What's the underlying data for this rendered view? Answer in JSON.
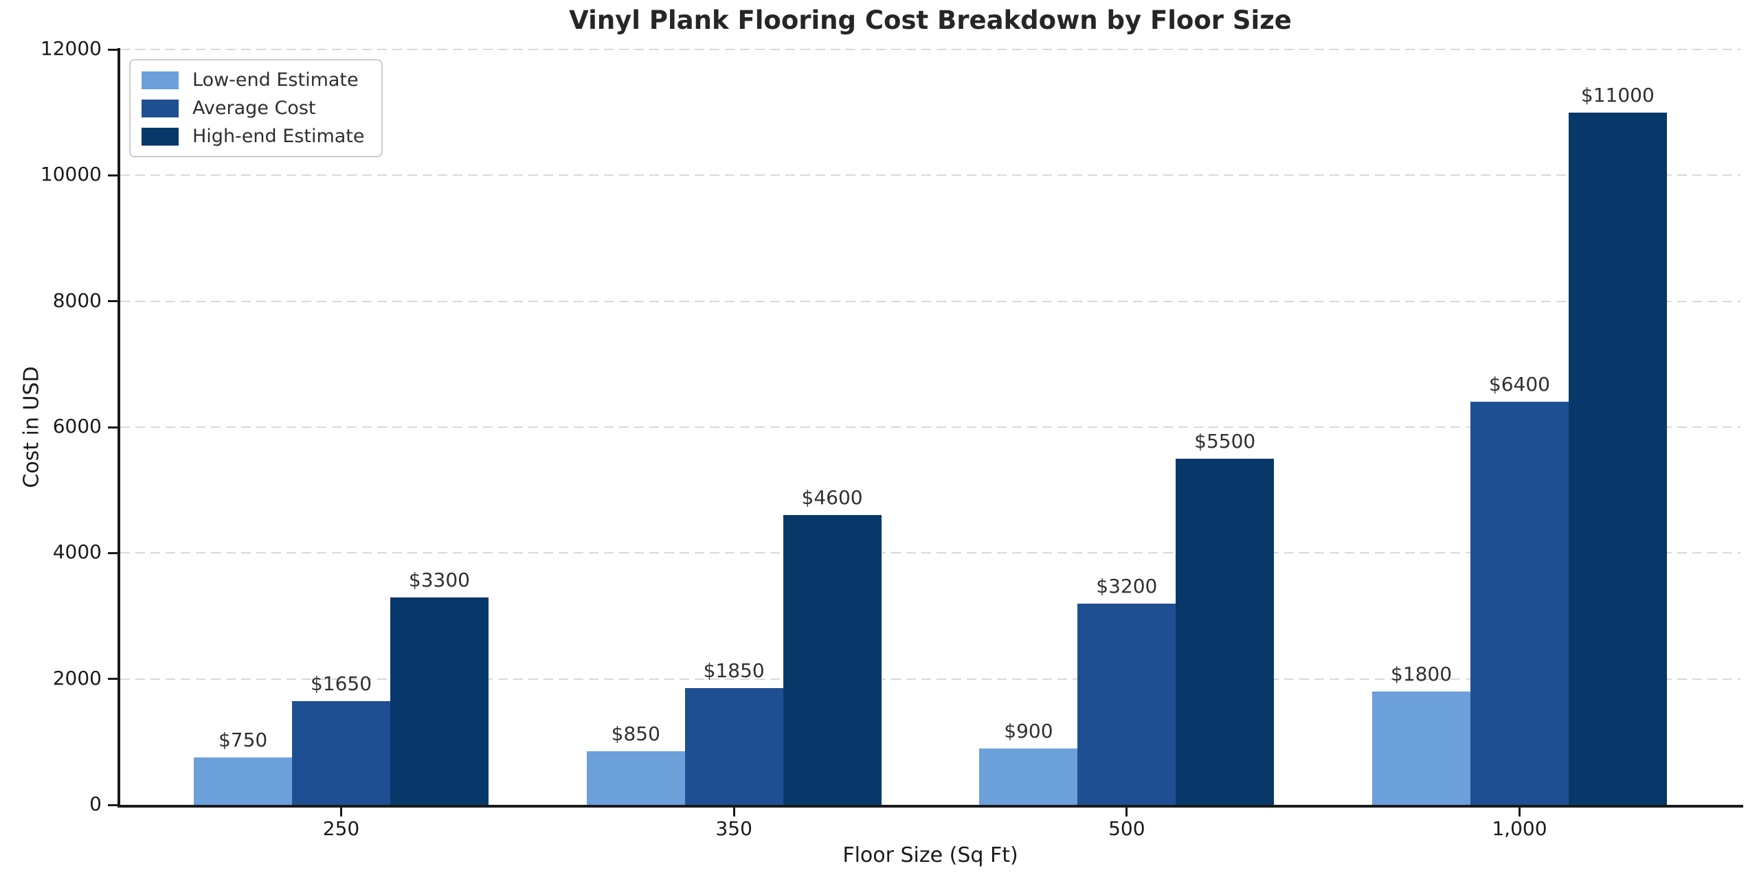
{
  "chart_data": {
    "type": "bar",
    "title": "Vinyl Plank Flooring Cost Breakdown by Floor Size",
    "xlabel": "Floor Size (Sq Ft)",
    "ylabel": "Cost in USD",
    "categories": [
      "250",
      "350",
      "500",
      "1,000"
    ],
    "series": [
      {
        "name": "Low-end Estimate",
        "color": "#6ba0da",
        "values": [
          750,
          850,
          900,
          1800
        ]
      },
      {
        "name": "Average Cost",
        "color": "#1f4f93",
        "values": [
          1650,
          1850,
          3200,
          6400
        ]
      },
      {
        "name": "High-end Estimate",
        "color": "#08386a",
        "values": [
          3300,
          4600,
          5500,
          11000
        ]
      }
    ],
    "value_label_prefix": "$",
    "ylim": [
      0,
      12000
    ],
    "yticks": [
      0,
      2000,
      4000,
      6000,
      8000,
      10000,
      12000
    ],
    "grid": "horizontal-dashed",
    "legend_position": "upper-left"
  },
  "colors": {
    "background": "#ffffff",
    "axis": "#1a1a1a",
    "gridline": "#d9d9d9",
    "value_label_text": "#303030",
    "legend_border": "#cbcbcb"
  }
}
